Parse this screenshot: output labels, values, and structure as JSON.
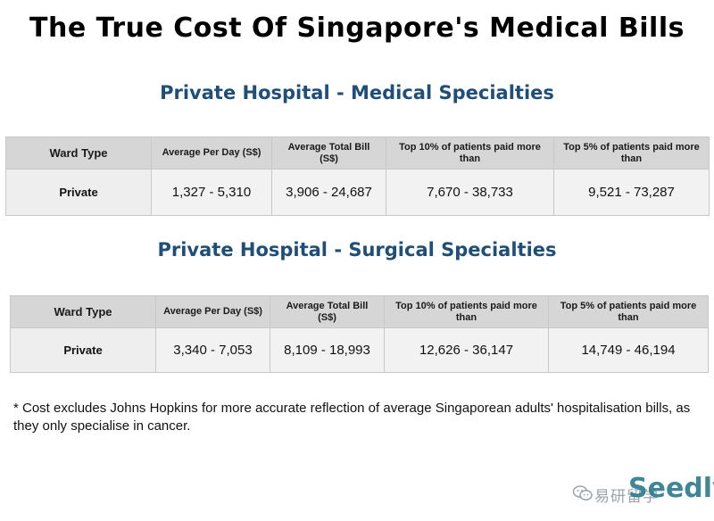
{
  "page": {
    "title": "The True Cost Of Singapore's Medical Bills"
  },
  "tables": [
    {
      "title": "Private Hospital - Medical Specialties",
      "headers": [
        "Ward Type",
        "Average Per Day (S$)",
        "Average Total Bill (S$)",
        "Top 10% of patients paid more than",
        "Top 5% of patients paid more than"
      ],
      "rows": [
        [
          "Private",
          "1,327  - 5,310",
          "3,906 - 24,687",
          "7,670 - 38,733",
          "9,521 - 73,287"
        ]
      ]
    },
    {
      "title": "Private Hospital - Surgical Specialties",
      "headers": [
        "Ward Type",
        "Average Per Day (S$)",
        "Average Total Bill (S$)",
        "Top 10% of patients paid more than",
        "Top 5% of patients paid more than"
      ],
      "rows": [
        [
          "Private",
          "3,340  - 7,053",
          "8,109 - 18,993",
          "12,626 - 36,147",
          "14,749 - 46,194"
        ]
      ]
    }
  ],
  "footnote": "* Cost excludes Johns Hopkins for more accurate reflection of average Singaporean adults' hospitalisation bills, as they only specialise in cancer.",
  "watermark": {
    "chars": "易研留学",
    "logo": "Seedly",
    "icon": "wechat-icon"
  },
  "colors": {
    "section_title": "#1f4e78",
    "header_bg": "#d6d6d6",
    "row_bg": "#f2f2f2"
  }
}
